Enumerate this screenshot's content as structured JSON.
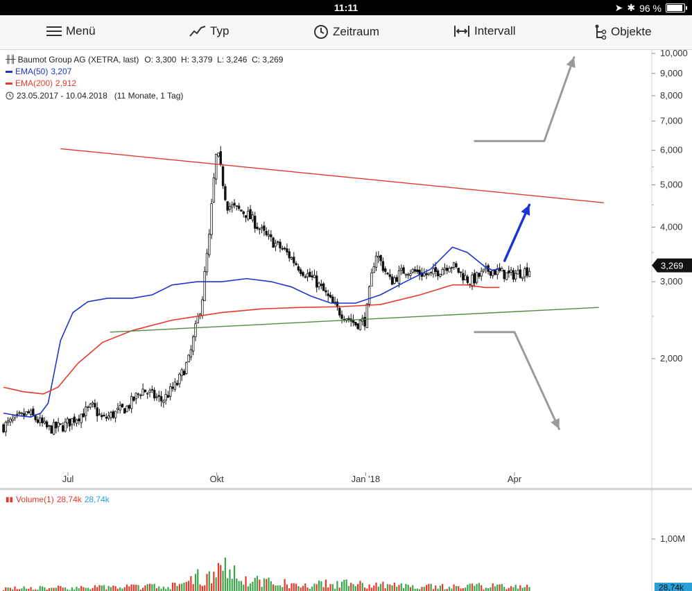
{
  "status_bar": {
    "time": "11:11",
    "battery": "96 %"
  },
  "toolbar": [
    {
      "key": "menu",
      "label": "Menü",
      "icon": "hamburger-icon"
    },
    {
      "key": "type",
      "label": "Typ",
      "icon": "line-chart-icon"
    },
    {
      "key": "timespan",
      "label": "Zeitraum",
      "icon": "clock-icon"
    },
    {
      "key": "interval",
      "label": "Intervall",
      "icon": "interval-icon"
    },
    {
      "key": "objects",
      "label": "Objekte",
      "icon": "objects-icon"
    }
  ],
  "legend": {
    "instrument": "Baumot Group AG (XETRA, last)",
    "ohlc": "O: 3,300  H: 3,379  L: 3,246  C: 3,269",
    "ema50": {
      "label": "EMA(50)",
      "value": "3,207",
      "color": "#1a35d0"
    },
    "ema200": {
      "label": "EMA(200)",
      "value": "2,912",
      "color": "#e8382a"
    },
    "range": "23.05.2017 - 10.04.2018",
    "range_detail": "(11 Monate, 1 Tag)"
  },
  "volume_legend": {
    "label": "Volume(1)",
    "value_red": "28,74k",
    "value_blue": "28,74k"
  },
  "chart_data": {
    "type": "candlestick",
    "price_axis": {
      "scale": "log",
      "ticks": [
        "10,000",
        "9,000",
        "8,000",
        "7,000",
        "6,000",
        "5,000",
        "4,000",
        "3,000",
        "2,000"
      ],
      "tick_values": [
        10,
        9,
        8,
        7,
        6,
        5,
        4,
        3,
        2
      ]
    },
    "x_ticks": [
      "Jul",
      "Okt",
      "Jan '18",
      "Apr"
    ],
    "last_price_label": "3,269",
    "volume_axis_tick": "1,00M",
    "volume_last_label": "28,74k",
    "series": [
      {
        "name": "EMA(50)",
        "color": "#1a35d0",
        "points": [
          [
            1.5,
            0.0
          ],
          [
            1.48,
            0.3
          ],
          [
            1.47,
            0.55
          ],
          [
            1.5,
            0.75
          ],
          [
            1.58,
            0.9
          ],
          [
            2.2,
            1.15
          ],
          [
            2.55,
            1.4
          ],
          [
            2.7,
            1.7
          ],
          [
            2.75,
            2.1
          ],
          [
            2.75,
            2.6
          ],
          [
            2.8,
            3.0
          ],
          [
            2.95,
            3.4
          ],
          [
            3.0,
            3.9
          ],
          [
            3.0,
            4.4
          ],
          [
            3.05,
            4.9
          ],
          [
            3.0,
            5.4
          ],
          [
            2.92,
            5.8
          ],
          [
            2.78,
            6.2
          ],
          [
            2.68,
            6.6
          ],
          [
            2.68,
            7.1
          ],
          [
            2.8,
            7.6
          ],
          [
            3.0,
            8.1
          ],
          [
            3.2,
            8.6
          ],
          [
            3.6,
            9.05
          ],
          [
            3.5,
            9.35
          ],
          [
            3.25,
            9.7
          ],
          [
            3.19,
            9.85
          ],
          [
            3.21,
            10.0
          ]
        ]
      },
      {
        "name": "EMA(200)",
        "color": "#e8382a",
        "points": [
          [
            1.72,
            0.0
          ],
          [
            1.68,
            0.4
          ],
          [
            1.66,
            0.8
          ],
          [
            1.72,
            1.1
          ],
          [
            1.95,
            1.5
          ],
          [
            2.18,
            2.0
          ],
          [
            2.32,
            2.6
          ],
          [
            2.45,
            3.4
          ],
          [
            2.55,
            4.4
          ],
          [
            2.6,
            5.2
          ],
          [
            2.62,
            6.0
          ],
          [
            2.63,
            6.8
          ],
          [
            2.66,
            7.6
          ],
          [
            2.8,
            8.4
          ],
          [
            2.95,
            9.05
          ],
          [
            2.95,
            9.35
          ],
          [
            2.91,
            9.7
          ],
          [
            2.912,
            10.0
          ]
        ]
      }
    ],
    "trendlines": [
      {
        "name": "resistance",
        "color": "#e03a2f",
        "from": [
          6.05,
          1.15
        ],
        "to": [
          4.55,
          12.1
        ]
      },
      {
        "name": "support",
        "color": "#4e8a3e",
        "from": [
          2.3,
          2.15
        ],
        "to": [
          2.62,
          12.0
        ]
      }
    ],
    "arrows": [
      {
        "name": "up-scenario-arrow",
        "color": "#9a9a9a",
        "points": [
          [
            6.3,
            9.5
          ],
          [
            6.3,
            10.9
          ],
          [
            9.8,
            11.5
          ]
        ]
      },
      {
        "name": "down-scenario-arrow",
        "color": "#9a9a9a",
        "points": [
          [
            2.3,
            9.5
          ],
          [
            2.3,
            10.3
          ],
          [
            1.38,
            11.2
          ]
        ]
      },
      {
        "name": "breakout-arrow",
        "color": "#1a35d0",
        "points": [
          [
            3.35,
            10.1
          ],
          [
            4.5,
            10.6
          ]
        ]
      }
    ],
    "price_anchors": [
      [
        1.4,
        0.0
      ],
      [
        1.5,
        0.5
      ],
      [
        1.38,
        0.9
      ],
      [
        1.4,
        1.2
      ],
      [
        1.55,
        1.8
      ],
      [
        1.45,
        2.0
      ],
      [
        1.55,
        2.5
      ],
      [
        1.7,
        2.8
      ],
      [
        1.6,
        3.2
      ],
      [
        1.75,
        3.5
      ],
      [
        2.0,
        3.75
      ],
      [
        2.7,
        4.0
      ],
      [
        3.8,
        4.15
      ],
      [
        6.0,
        4.3
      ],
      [
        4.5,
        4.5
      ],
      [
        4.3,
        4.9
      ],
      [
        3.8,
        5.3
      ],
      [
        3.5,
        5.7
      ],
      [
        3.2,
        6.0
      ],
      [
        3.0,
        6.3
      ],
      [
        2.6,
        6.7
      ],
      [
        2.4,
        7.1
      ],
      [
        2.45,
        7.3
      ],
      [
        3.5,
        7.5
      ],
      [
        3.0,
        7.8
      ],
      [
        3.2,
        8.1
      ],
      [
        3.1,
        8.6
      ],
      [
        3.3,
        9.0
      ],
      [
        3.0,
        9.4
      ],
      [
        3.2,
        9.8
      ],
      [
        3.1,
        10.2
      ],
      [
        3.2,
        10.6
      ],
      [
        3.05,
        11.0
      ],
      [
        3.1,
        11.4
      ],
      [
        2.95,
        11.8
      ],
      [
        2.8,
        12.2
      ],
      [
        2.7,
        12.6
      ],
      [
        2.6,
        13.0
      ],
      [
        2.7,
        13.4
      ],
      [
        2.5,
        13.8
      ],
      [
        2.4,
        14.2
      ],
      [
        2.7,
        14.5
      ],
      [
        2.6,
        14.9
      ],
      [
        2.45,
        15.3
      ],
      [
        2.4,
        15.7
      ],
      [
        2.55,
        16.0
      ],
      [
        2.75,
        16.3
      ],
      [
        2.9,
        16.7
      ],
      [
        2.85,
        17.1
      ],
      [
        3.0,
        17.5
      ],
      [
        3.2,
        17.9
      ],
      [
        3.3,
        18.3
      ],
      [
        3.4,
        18.7
      ],
      [
        3.6,
        19.1
      ],
      [
        3.8,
        19.4
      ],
      [
        4.2,
        19.7
      ],
      [
        4.5,
        20.0
      ],
      [
        4.9,
        20.3
      ],
      [
        4.6,
        20.6
      ],
      [
        3.8,
        20.9
      ],
      [
        3.4,
        21.2
      ],
      [
        3.0,
        21.5
      ],
      [
        2.8,
        21.8
      ],
      [
        2.55,
        22.0
      ],
      [
        2.6,
        22.2
      ],
      [
        2.8,
        22.4
      ],
      [
        3.3,
        22.6
      ]
    ],
    "volume_anchors": [
      [
        0.05,
        0.0
      ],
      [
        0.07,
        2.0
      ],
      [
        0.1,
        3.5
      ],
      [
        0.35,
        4.2
      ],
      [
        0.45,
        4.5
      ],
      [
        0.2,
        5.0
      ],
      [
        0.12,
        6.0
      ],
      [
        0.14,
        7.0
      ],
      [
        0.1,
        8.0
      ],
      [
        0.08,
        9.0
      ],
      [
        0.1,
        10.0
      ],
      [
        0.06,
        11.0
      ],
      [
        0.08,
        12.0
      ],
      [
        0.07,
        13.0
      ],
      [
        0.05,
        14.0
      ],
      [
        0.07,
        15.0
      ],
      [
        0.06,
        16.0
      ],
      [
        0.12,
        17.0
      ],
      [
        0.1,
        18.0
      ],
      [
        0.18,
        19.5
      ],
      [
        0.22,
        20.0
      ],
      [
        0.12,
        20.5
      ],
      [
        0.1,
        21.0
      ],
      [
        0.07,
        22.0
      ],
      [
        0.05,
        22.6
      ]
    ]
  }
}
